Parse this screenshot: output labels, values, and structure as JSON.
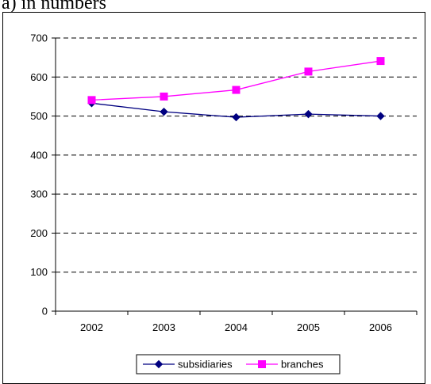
{
  "caption": "a) in numbers",
  "chart_data": {
    "type": "line",
    "categories": [
      "2002",
      "2003",
      "2004",
      "2005",
      "2006"
    ],
    "ylim": [
      0,
      700
    ],
    "yticks": [
      0,
      100,
      200,
      300,
      400,
      500,
      600,
      700
    ],
    "grid": "horizontal dashed",
    "legend_position": "bottom",
    "series": [
      {
        "name": "subsidiaries",
        "color": "#000080",
        "marker": "diamond",
        "values": [
          533,
          511,
          497,
          505,
          500
        ]
      },
      {
        "name": "branches",
        "color": "#ff00ff",
        "marker": "square",
        "values": [
          541,
          550,
          567,
          614,
          641
        ]
      }
    ]
  }
}
